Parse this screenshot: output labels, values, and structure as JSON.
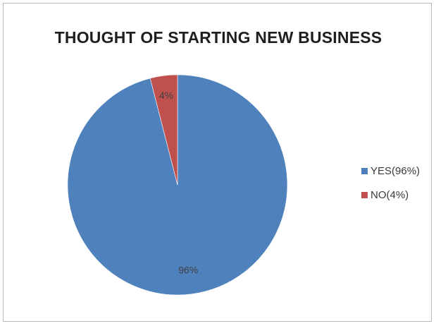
{
  "chart_data": {
    "type": "pie",
    "title": "THOUGHT OF STARTING NEW BUSINESS",
    "categories": [
      "YES(96%)",
      "NO(4%)"
    ],
    "values": [
      96,
      4
    ],
    "data_labels": [
      "96%",
      "4%"
    ],
    "colors": [
      "#4f81bd",
      "#c0504d"
    ],
    "legend_position": "right"
  }
}
